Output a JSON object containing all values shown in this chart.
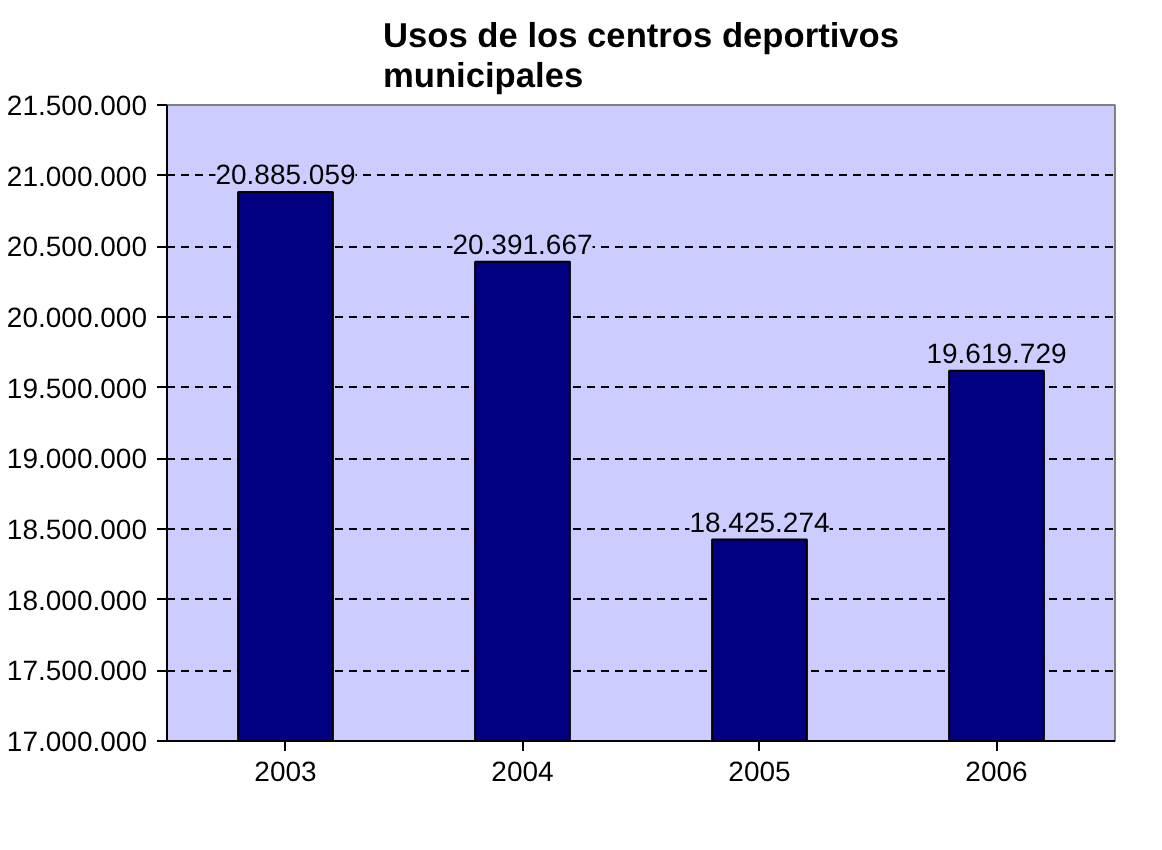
{
  "chart_data": {
    "type": "bar",
    "title": "Usos de los centros deportivos municipales",
    "categories": [
      "2003",
      "2004",
      "2005",
      "2006"
    ],
    "values": [
      20885059,
      20391667,
      18425274,
      19619729
    ],
    "value_labels": [
      "20.885.059",
      "20.391.667",
      "18.425.274",
      "19.619.729"
    ],
    "color": "#000080",
    "ylim": [
      17000000,
      21500000
    ],
    "yticks": [
      {
        "value": 17000000,
        "label": "17.000.000"
      },
      {
        "value": 17500000,
        "label": "17.500.000"
      },
      {
        "value": 18000000,
        "label": "18.000.000"
      },
      {
        "value": 18500000,
        "label": "18.500.000"
      },
      {
        "value": 19000000,
        "label": "19.000.000"
      },
      {
        "value": 19500000,
        "label": "19.500.000"
      },
      {
        "value": 20000000,
        "label": "20.000.000"
      },
      {
        "value": 20500000,
        "label": "20.500.000"
      },
      {
        "value": 21000000,
        "label": "21.000.000"
      },
      {
        "value": 21500000,
        "label": "21.500.000"
      }
    ],
    "grid": "y"
  }
}
